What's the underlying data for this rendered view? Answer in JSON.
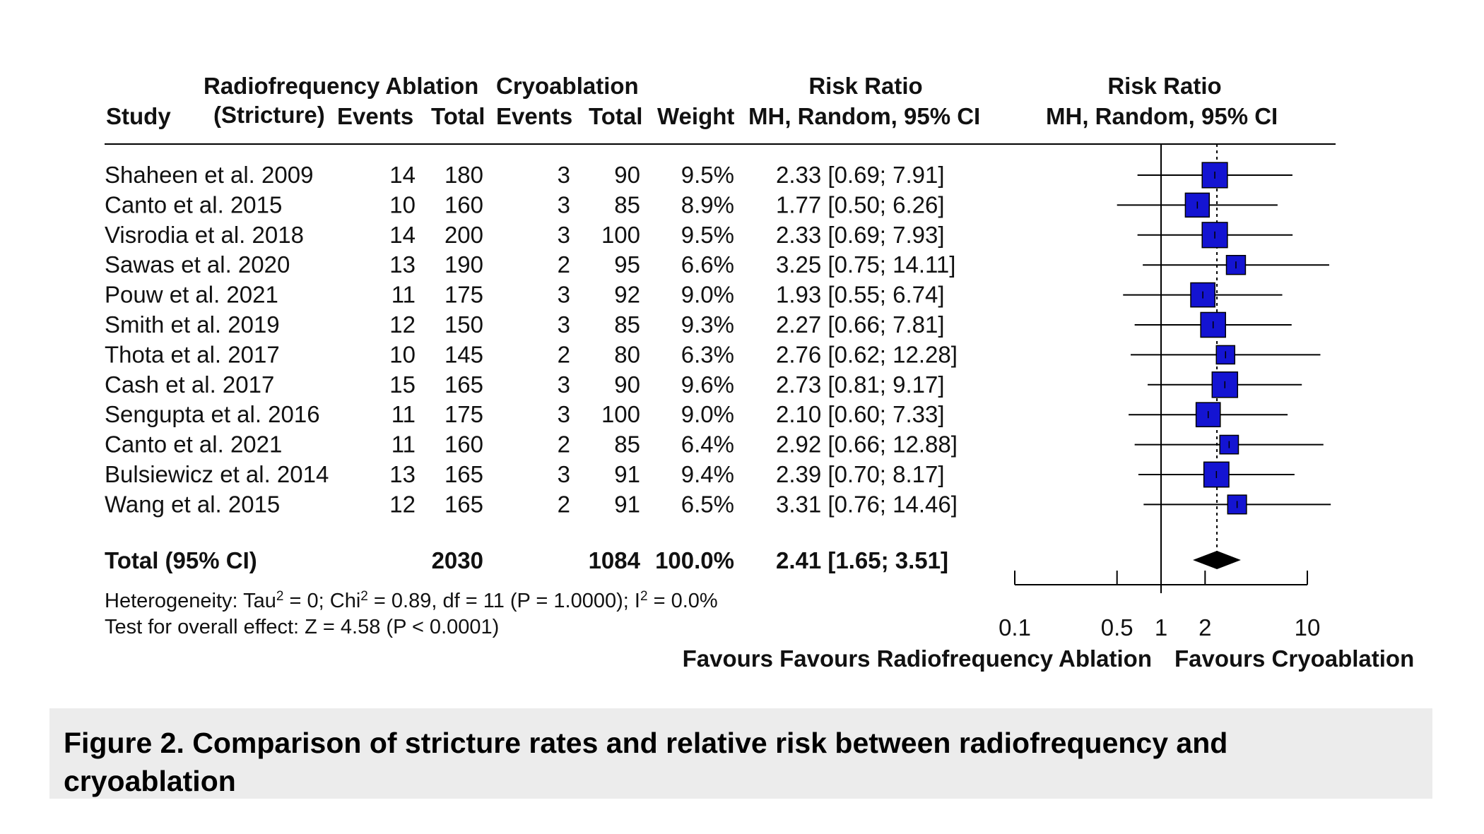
{
  "chart_data": {
    "type": "forest",
    "header": {
      "study": "Study",
      "group1": "Radiofrequency Ablation",
      "group1_sub": "(Stricture)",
      "group2": "Cryoablation",
      "events": "Events",
      "total": "Total",
      "weight": "Weight",
      "rr": "Risk Ratio",
      "rr_method": "MH, Random, 95% CI"
    },
    "studies": [
      {
        "name": "Shaheen et al. 2009",
        "e1": "14",
        "n1": "180",
        "e2": "3",
        "n2": "90",
        "weight": "9.5%",
        "ci_text": "2.33 [0.69;  7.91]",
        "rr": 2.33,
        "lo": 0.69,
        "hi": 7.91
      },
      {
        "name": "Canto et al. 2015",
        "e1": "10",
        "n1": "160",
        "e2": "3",
        "n2": "85",
        "weight": "8.9%",
        "ci_text": "1.77 [0.50;  6.26]",
        "rr": 1.77,
        "lo": 0.5,
        "hi": 6.26
      },
      {
        "name": "Visrodia et al. 2018",
        "e1": "14",
        "n1": "200",
        "e2": "3",
        "n2": "100",
        "weight": "9.5%",
        "ci_text": "2.33 [0.69;  7.93]",
        "rr": 2.33,
        "lo": 0.69,
        "hi": 7.93
      },
      {
        "name": "Sawas et al. 2020",
        "e1": "13",
        "n1": "190",
        "e2": "2",
        "n2": "95",
        "weight": "6.6%",
        "ci_text": "3.25 [0.75; 14.11]",
        "rr": 3.25,
        "lo": 0.75,
        "hi": 14.11
      },
      {
        "name": "Pouw et al. 2021",
        "e1": "11",
        "n1": "175",
        "e2": "3",
        "n2": "92",
        "weight": "9.0%",
        "ci_text": "1.93 [0.55;  6.74]",
        "rr": 1.93,
        "lo": 0.55,
        "hi": 6.74
      },
      {
        "name": "Smith et al. 2019",
        "e1": "12",
        "n1": "150",
        "e2": "3",
        "n2": "85",
        "weight": "9.3%",
        "ci_text": "2.27 [0.66;  7.81]",
        "rr": 2.27,
        "lo": 0.66,
        "hi": 7.81
      },
      {
        "name": "Thota et al. 2017",
        "e1": "10",
        "n1": "145",
        "e2": "2",
        "n2": "80",
        "weight": "6.3%",
        "ci_text": "2.76 [0.62; 12.28]",
        "rr": 2.76,
        "lo": 0.62,
        "hi": 12.28
      },
      {
        "name": "Cash et al. 2017",
        "e1": "15",
        "n1": "165",
        "e2": "3",
        "n2": "90",
        "weight": "9.6%",
        "ci_text": "2.73 [0.81;  9.17]",
        "rr": 2.73,
        "lo": 0.81,
        "hi": 9.17
      },
      {
        "name": "Sengupta et al. 2016",
        "e1": "11",
        "n1": "175",
        "e2": "3",
        "n2": "100",
        "weight": "9.0%",
        "ci_text": "2.10 [0.60;  7.33]",
        "rr": 2.1,
        "lo": 0.6,
        "hi": 7.33
      },
      {
        "name": "Canto et al. 2021",
        "e1": "11",
        "n1": "160",
        "e2": "2",
        "n2": "85",
        "weight": "6.4%",
        "ci_text": "2.92 [0.66; 12.88]",
        "rr": 2.92,
        "lo": 0.66,
        "hi": 12.88
      },
      {
        "name": "Bulsiewicz et al. 2014",
        "e1": "13",
        "n1": "165",
        "e2": "3",
        "n2": "91",
        "weight": "9.4%",
        "ci_text": "2.39 [0.70;  8.17]",
        "rr": 2.39,
        "lo": 0.7,
        "hi": 8.17
      },
      {
        "name": "Wang et al. 2015",
        "e1": "12",
        "n1": "165",
        "e2": "2",
        "n2": "91",
        "weight": "6.5%",
        "ci_text": "3.31 [0.76; 14.46]",
        "rr": 3.31,
        "lo": 0.76,
        "hi": 14.46
      }
    ],
    "total": {
      "label": "Total (95% CI)",
      "n1": "2030",
      "n2": "1084",
      "weight": "100.0%",
      "ci_text": "2.41 [1.65;  3.51]",
      "rr": 2.41,
      "lo": 1.65,
      "hi": 3.51
    },
    "heterogeneity": {
      "t1": "Heterogeneity: Tau",
      "t2": " = 0; Chi",
      "t3": " = 0.89, df = 11 (P = 1.0000); I",
      "t4": " = 0.0%",
      "sup": "2"
    },
    "overall_effect": "Test for overall effect: Z = 4.58 (P < 0.0001)",
    "axis": {
      "scale": "log",
      "ticks": [
        0.1,
        0.5,
        1,
        2,
        10
      ],
      "tick_labels": [
        "0.1",
        "0.5",
        "1",
        "2",
        "10"
      ],
      "null_value": 1,
      "label_left": "Favours Favours Radiofrequency Ablation",
      "label_right": "Favours Cryoablation"
    },
    "colors": {
      "square": "#1414d2",
      "diamond": "#000000",
      "line": "#000000",
      "pooled_line": "#000000"
    }
  },
  "caption": "Figure 2. Comparison of stricture rates and relative risk between radiofrequency and cryoablation"
}
